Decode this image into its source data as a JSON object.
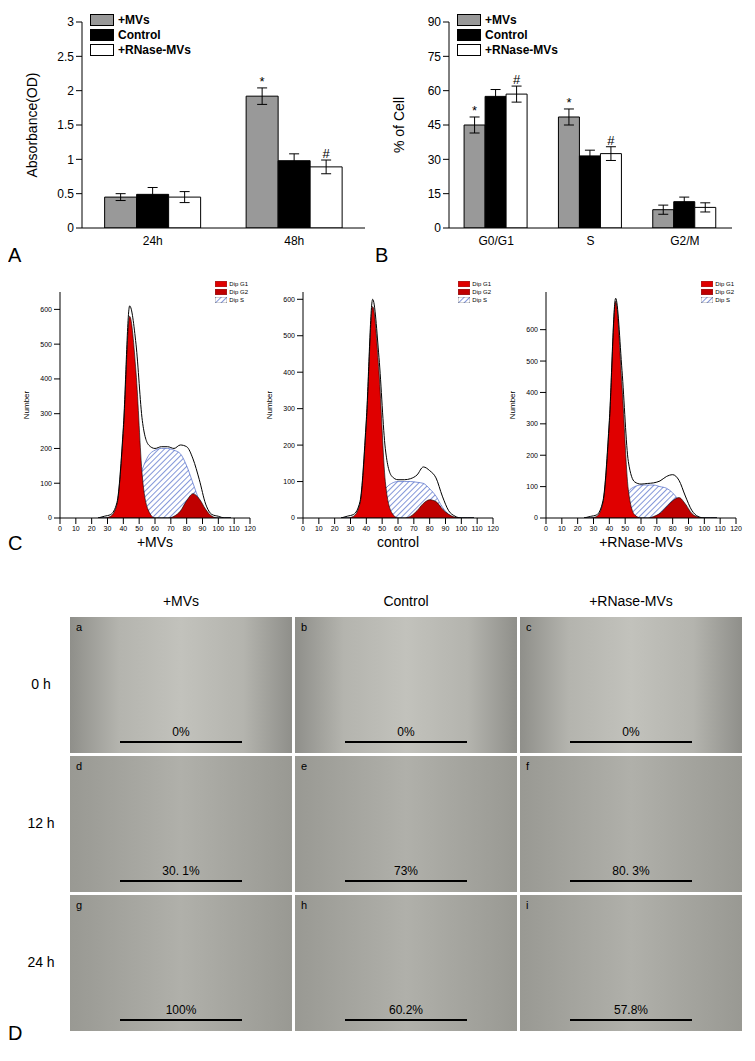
{
  "panel_labels": [
    "A",
    "B",
    "C",
    "D"
  ],
  "chart_data": [
    {
      "type": "bar",
      "ylabel": "Absorbance(OD)",
      "categories": [
        "24h",
        "48h"
      ],
      "series": [
        {
          "name": "+MVs",
          "color": "#999999",
          "values": [
            0.45,
            1.92
          ],
          "errors": [
            0.05,
            0.12
          ],
          "annotations": [
            null,
            "*"
          ]
        },
        {
          "name": "Control",
          "color": "#000000",
          "values": [
            0.49,
            0.98
          ],
          "errors": [
            0.1,
            0.1
          ],
          "annotations": [
            null,
            null
          ]
        },
        {
          "name": "+RNase-MVs",
          "color": "#ffffff",
          "values": [
            0.45,
            0.89
          ],
          "errors": [
            0.08,
            0.1
          ],
          "annotations": [
            null,
            "#"
          ]
        }
      ],
      "ylim": [
        0,
        3
      ],
      "yticks": [
        0,
        0.5,
        1,
        1.5,
        2,
        2.5,
        3
      ],
      "legend": "upper left"
    },
    {
      "type": "bar",
      "ylabel": "% of Cell",
      "categories": [
        "G0/G1",
        "S",
        "G2/M"
      ],
      "series": [
        {
          "name": "+MVs",
          "color": "#999999",
          "values": [
            45,
            48.5,
            8
          ],
          "errors": [
            3.5,
            3.5,
            2
          ],
          "annotations": [
            "*",
            "*",
            null
          ]
        },
        {
          "name": "Control",
          "color": "#000000",
          "values": [
            57.5,
            31.5,
            11.5
          ],
          "errors": [
            3,
            2.5,
            2
          ],
          "annotations": [
            null,
            null,
            null
          ]
        },
        {
          "name": "+RNase-MVs",
          "color": "#ffffff",
          "values": [
            58.5,
            32.5,
            9
          ],
          "errors": [
            3.5,
            3,
            2
          ],
          "annotations": [
            "#",
            "#",
            null
          ]
        }
      ],
      "ylim": [
        0,
        90
      ],
      "yticks": [
        0,
        15,
        30,
        45,
        60,
        75,
        90
      ],
      "legend": "upper left"
    },
    {
      "type": "area",
      "title": "+MVs",
      "ylabel": "Number",
      "x": [
        24,
        28,
        32,
        36,
        40,
        44,
        48,
        52,
        56,
        60,
        64,
        68,
        72,
        76,
        80,
        84,
        88,
        92,
        96,
        100,
        104,
        108
      ],
      "series": [
        {
          "name": "Dip G1",
          "color": "#e00000",
          "values": [
            0,
            0,
            5,
            40,
            250,
            580,
            420,
            120,
            20,
            0,
            0,
            0,
            0,
            0,
            0,
            0,
            0,
            0,
            0,
            0,
            0,
            0
          ]
        },
        {
          "name": "Dip G2",
          "color": "#c00000",
          "values": [
            0,
            0,
            0,
            0,
            0,
            0,
            0,
            0,
            0,
            0,
            0,
            0,
            5,
            20,
            50,
            70,
            55,
            25,
            5,
            0,
            0,
            0
          ]
        },
        {
          "name": "Dip S",
          "color": "#3050c0",
          "line_style": "hatched",
          "values": [
            0,
            0,
            0,
            0,
            0,
            20,
            80,
            140,
            180,
            195,
            200,
            200,
            195,
            185,
            150,
            100,
            50,
            15,
            0,
            0,
            0,
            0
          ]
        },
        {
          "type": "line",
          "color": "#000000",
          "values": [
            0,
            5,
            10,
            45,
            260,
            610,
            500,
            280,
            210,
            200,
            205,
            205,
            200,
            210,
            205,
            170,
            110,
            40,
            10,
            5,
            0,
            0
          ]
        }
      ],
      "xlim": [
        0,
        120
      ],
      "xticks": [
        0,
        10,
        20,
        30,
        40,
        50,
        60,
        70,
        80,
        90,
        100,
        110,
        120
      ],
      "ylim": [
        0,
        650
      ],
      "yticks": [
        0,
        100,
        200,
        300,
        400,
        500,
        600
      ],
      "legend": "upper right"
    },
    {
      "type": "area",
      "title": "control",
      "ylabel": "Number",
      "x": [
        24,
        28,
        32,
        36,
        40,
        44,
        48,
        52,
        56,
        60,
        64,
        68,
        72,
        76,
        80,
        84,
        88,
        92,
        96,
        100,
        104,
        108
      ],
      "series": [
        {
          "name": "Dip G1",
          "color": "#e00000",
          "values": [
            0,
            0,
            5,
            40,
            260,
            580,
            400,
            100,
            15,
            0,
            0,
            0,
            0,
            0,
            0,
            0,
            0,
            0,
            0,
            0,
            0,
            0
          ]
        },
        {
          "name": "Dip G2",
          "color": "#c00000",
          "values": [
            0,
            0,
            0,
            0,
            0,
            0,
            0,
            0,
            0,
            0,
            0,
            5,
            20,
            40,
            50,
            45,
            25,
            10,
            2,
            0,
            0,
            0
          ]
        },
        {
          "name": "Dip S",
          "color": "#3050c0",
          "line_style": "hatched",
          "values": [
            0,
            0,
            0,
            0,
            0,
            10,
            50,
            80,
            95,
            100,
            100,
            100,
            98,
            95,
            80,
            60,
            30,
            10,
            0,
            0,
            0,
            0
          ]
        },
        {
          "type": "line",
          "color": "#000000",
          "values": [
            0,
            5,
            10,
            45,
            270,
            600,
            440,
            190,
            115,
            105,
            105,
            108,
            118,
            140,
            130,
            110,
            60,
            20,
            5,
            0,
            0,
            0
          ]
        }
      ],
      "xlim": [
        0,
        120
      ],
      "xticks": [
        0,
        10,
        20,
        30,
        40,
        50,
        60,
        70,
        80,
        90,
        100,
        110,
        120
      ],
      "ylim": [
        0,
        620
      ],
      "yticks": [
        0,
        100,
        200,
        300,
        400,
        500,
        600
      ],
      "legend": "upper right"
    },
    {
      "type": "area",
      "title": "+RNase-MVs",
      "ylabel": "Number",
      "x": [
        24,
        28,
        32,
        36,
        40,
        44,
        48,
        52,
        56,
        60,
        64,
        68,
        72,
        76,
        80,
        84,
        88,
        92,
        96,
        100,
        104,
        108
      ],
      "series": [
        {
          "name": "Dip G1",
          "color": "#e00000",
          "values": [
            0,
            0,
            5,
            50,
            300,
            690,
            420,
            90,
            10,
            0,
            0,
            0,
            0,
            0,
            0,
            0,
            0,
            0,
            0,
            0,
            0,
            0
          ]
        },
        {
          "name": "Dip G2",
          "color": "#c00000",
          "values": [
            0,
            0,
            0,
            0,
            0,
            0,
            0,
            0,
            0,
            0,
            0,
            5,
            15,
            35,
            55,
            65,
            45,
            15,
            3,
            0,
            0,
            0
          ]
        },
        {
          "name": "Dip S",
          "color": "#3050c0",
          "line_style": "hatched",
          "values": [
            0,
            0,
            0,
            0,
            0,
            10,
            50,
            85,
            100,
            105,
            105,
            105,
            100,
            95,
            80,
            55,
            25,
            8,
            0,
            0,
            0,
            0
          ]
        },
        {
          "type": "line",
          "color": "#000000",
          "values": [
            0,
            5,
            10,
            55,
            310,
            700,
            470,
            180,
            115,
            108,
            110,
            112,
            118,
            132,
            138,
            120,
            70,
            25,
            5,
            0,
            0,
            0
          ]
        }
      ],
      "xlim": [
        0,
        120
      ],
      "xticks": [
        0,
        10,
        20,
        30,
        40,
        50,
        60,
        70,
        80,
        90,
        100,
        110,
        120
      ],
      "ylim": [
        0,
        720
      ],
      "yticks": [
        0,
        100,
        200,
        300,
        400,
        500,
        600
      ],
      "legend": "upper right"
    }
  ],
  "figure_d": {
    "columns": [
      "+MVs",
      "Control",
      "+RNase-MVs"
    ],
    "rows": [
      "0 h",
      "12 h",
      "24 h"
    ],
    "cells": [
      [
        "0%",
        "0%",
        "0%"
      ],
      [
        "30. 1%",
        "73%",
        "80. 3%"
      ],
      [
        "100%",
        "60.2%",
        "57.8%"
      ]
    ],
    "cell_letters": [
      [
        "a",
        "b",
        "c"
      ],
      [
        "d",
        "e",
        "f"
      ],
      [
        "g",
        "h",
        "i"
      ]
    ]
  }
}
